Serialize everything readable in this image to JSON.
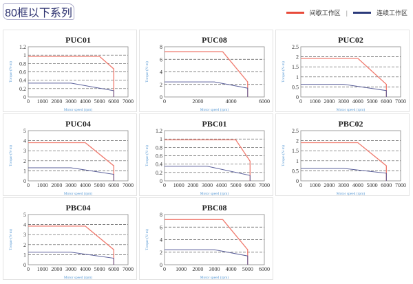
{
  "header": {
    "title": "80框以下系列"
  },
  "legend": {
    "intermittent": {
      "label": "间歇工作区",
      "color": "#e84a3a"
    },
    "separator": "|",
    "continuous": {
      "label": "连续工作区",
      "color": "#2b3a7a"
    }
  },
  "colors": {
    "intermittent_line": "#f07a6e",
    "continuous_line": "#5a5f9a",
    "axis_label": "#5b9bd5",
    "grid": "#555555"
  },
  "chart_data": [
    {
      "type": "line",
      "title": "PUC01",
      "xlabel": "Motor speed (rpm)",
      "ylabel": "Torque (N·m)",
      "xlim": [
        0,
        7000
      ],
      "xstep": 1000,
      "ylim": [
        0,
        1.2
      ],
      "ystep": 0.2,
      "grid": "dashed-horizontal",
      "series": [
        {
          "key": "intermittent",
          "points": [
            [
              0,
              0.97
            ],
            [
              5000,
              0.97
            ],
            [
              6000,
              0.67
            ],
            [
              6000,
              0
            ]
          ]
        },
        {
          "key": "continuous",
          "points": [
            [
              0,
              0.33
            ],
            [
              3000,
              0.33
            ],
            [
              6000,
              0.15
            ],
            [
              6000,
              0
            ]
          ]
        }
      ]
    },
    {
      "type": "line",
      "title": "PUC08",
      "xlabel": "Motor speed (rpm)",
      "ylabel": "Torque (N·m)",
      "xlim": [
        0,
        6000
      ],
      "xstep": 2000,
      "ylim": [
        0,
        8
      ],
      "ystep": 2,
      "grid": "dashed-horizontal",
      "series": [
        {
          "key": "intermittent",
          "points": [
            [
              0,
              7.2
            ],
            [
              3500,
              7.2
            ],
            [
              5000,
              2.4
            ],
            [
              5000,
              0
            ]
          ]
        },
        {
          "key": "continuous",
          "points": [
            [
              0,
              2.4
            ],
            [
              3000,
              2.4
            ],
            [
              5000,
              1.4
            ],
            [
              5000,
              0
            ]
          ]
        }
      ]
    },
    {
      "type": "line",
      "title": "PUC02",
      "xlabel": "Motor speed (rpm)",
      "ylabel": "Torque (N·m)",
      "xlim": [
        0,
        7000
      ],
      "xstep": 1000,
      "ylim": [
        0,
        2.5
      ],
      "ystep": 0.5,
      "grid": "dashed-horizontal",
      "series": [
        {
          "key": "intermittent",
          "points": [
            [
              0,
              1.92
            ],
            [
              4000,
              1.92
            ],
            [
              6000,
              0.63
            ],
            [
              6000,
              0
            ]
          ]
        },
        {
          "key": "continuous",
          "points": [
            [
              0,
              0.63
            ],
            [
              3000,
              0.63
            ],
            [
              6000,
              0.32
            ],
            [
              6000,
              0
            ]
          ]
        }
      ]
    },
    {
      "type": "line",
      "title": "PUC04",
      "xlabel": "Motor speed (rpm)",
      "ylabel": "Torque (N·m)",
      "xlim": [
        0,
        7000
      ],
      "xstep": 1000,
      "ylim": [
        0,
        5
      ],
      "ystep": 1,
      "grid": "dashed-horizontal",
      "series": [
        {
          "key": "intermittent",
          "points": [
            [
              0,
              3.8
            ],
            [
              4000,
              3.8
            ],
            [
              6000,
              1.5
            ],
            [
              6000,
              0
            ]
          ]
        },
        {
          "key": "continuous",
          "points": [
            [
              0,
              1.3
            ],
            [
              3000,
              1.3
            ],
            [
              6000,
              0.65
            ],
            [
              6000,
              0
            ]
          ]
        }
      ]
    },
    {
      "type": "line",
      "title": "PBC01",
      "xlabel": "Motor speed (rpm)",
      "ylabel": "Torque (N·m)",
      "xlim": [
        0,
        7000
      ],
      "xstep": 1000,
      "ylim": [
        0,
        1.2
      ],
      "ystep": 0.2,
      "grid": "dashed-horizontal",
      "series": [
        {
          "key": "intermittent",
          "points": [
            [
              0,
              0.98
            ],
            [
              5000,
              0.98
            ],
            [
              6000,
              0.47
            ],
            [
              6000,
              0
            ]
          ]
        },
        {
          "key": "continuous",
          "points": [
            [
              0,
              0.35
            ],
            [
              3000,
              0.35
            ],
            [
              6000,
              0.13
            ],
            [
              6000,
              0
            ]
          ]
        }
      ]
    },
    {
      "type": "line",
      "title": "PBC02",
      "xlabel": "Motor speed (rpm)",
      "ylabel": "Torque (N·m)",
      "xlim": [
        0,
        7000
      ],
      "xstep": 1000,
      "ylim": [
        0,
        2.5
      ],
      "ystep": 0.5,
      "grid": "dashed-horizontal",
      "series": [
        {
          "key": "intermittent",
          "points": [
            [
              0,
              1.9
            ],
            [
              4000,
              1.9
            ],
            [
              6000,
              0.75
            ],
            [
              6000,
              0
            ]
          ]
        },
        {
          "key": "continuous",
          "points": [
            [
              0,
              0.62
            ],
            [
              3000,
              0.62
            ],
            [
              6000,
              0.38
            ],
            [
              6000,
              0
            ]
          ]
        }
      ]
    },
    {
      "type": "line",
      "title": "PBC04",
      "xlabel": "Motor speed (rpm)",
      "ylabel": "Torque (N·m)",
      "xlim": [
        0,
        7000
      ],
      "xstep": 1000,
      "ylim": [
        0,
        5
      ],
      "ystep": 1,
      "grid": "dashed-horizontal",
      "series": [
        {
          "key": "intermittent",
          "points": [
            [
              0,
              3.85
            ],
            [
              4000,
              3.85
            ],
            [
              6000,
              1.5
            ],
            [
              6000,
              0
            ]
          ]
        },
        {
          "key": "continuous",
          "points": [
            [
              0,
              1.25
            ],
            [
              3000,
              1.25
            ],
            [
              6000,
              0.65
            ],
            [
              6000,
              0
            ]
          ]
        }
      ]
    },
    {
      "type": "line",
      "title": "PBC08",
      "xlabel": "Motor speed (rpm)",
      "ylabel": "Torque (N·m)",
      "xlim": [
        0,
        6000
      ],
      "xstep": 1000,
      "ylim": [
        0,
        8
      ],
      "ystep": 2,
      "grid": "dashed-horizontal",
      "series": [
        {
          "key": "intermittent",
          "points": [
            [
              0,
              7.2
            ],
            [
              3500,
              7.2
            ],
            [
              5000,
              2.4
            ],
            [
              5000,
              0
            ]
          ]
        },
        {
          "key": "continuous",
          "points": [
            [
              0,
              2.4
            ],
            [
              3000,
              2.4
            ],
            [
              5000,
              1.4
            ],
            [
              5000,
              0
            ]
          ]
        }
      ]
    }
  ]
}
